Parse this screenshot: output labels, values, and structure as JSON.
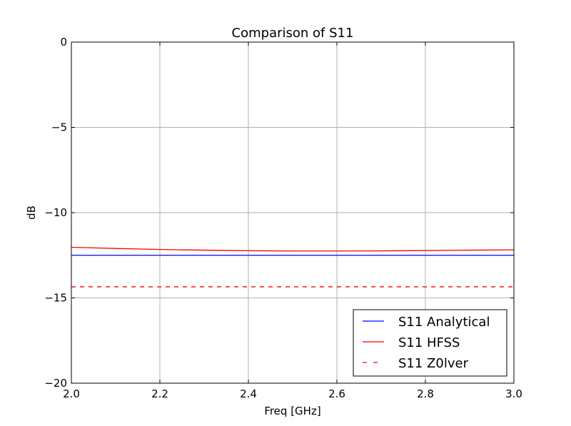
{
  "chart_data": {
    "type": "line",
    "title": "Comparison of S11",
    "xlabel": "Freq [GHz]",
    "ylabel": "dB",
    "xlim": [
      2.0,
      3.0
    ],
    "ylim": [
      -20,
      0
    ],
    "xticks": [
      2.0,
      2.2,
      2.4,
      2.6,
      2.8,
      3.0
    ],
    "xtick_labels": [
      "2.0",
      "2.2",
      "2.4",
      "2.6",
      "2.8",
      "3.0"
    ],
    "yticks": [
      0,
      -5,
      -10,
      -15,
      -20
    ],
    "ytick_labels": [
      "0",
      "−5",
      "−10",
      "−15",
      "−20"
    ],
    "grid": true,
    "legend_position": "bottom-right",
    "series": [
      {
        "name": "S11 Analytical",
        "color": "#0000ff",
        "linestyle": "solid",
        "x": [
          2.0,
          2.1,
          2.2,
          2.3,
          2.4,
          2.5,
          2.6,
          2.7,
          2.8,
          2.9,
          3.0
        ],
        "y": [
          -12.5,
          -12.5,
          -12.5,
          -12.5,
          -12.5,
          -12.5,
          -12.5,
          -12.5,
          -12.5,
          -12.5,
          -12.5
        ]
      },
      {
        "name": "S11 HFSS",
        "color": "#ff0000",
        "linestyle": "solid",
        "x": [
          2.0,
          2.1,
          2.2,
          2.3,
          2.4,
          2.5,
          2.6,
          2.7,
          2.8,
          2.9,
          3.0
        ],
        "y": [
          -12.03,
          -12.1,
          -12.16,
          -12.2,
          -12.23,
          -12.25,
          -12.25,
          -12.24,
          -12.22,
          -12.2,
          -12.18
        ]
      },
      {
        "name": "S11 Z0lver",
        "color": "#ff0000",
        "linestyle": "dashed",
        "x": [
          2.0,
          3.0
        ],
        "y": [
          -14.35,
          -14.35
        ]
      }
    ]
  }
}
